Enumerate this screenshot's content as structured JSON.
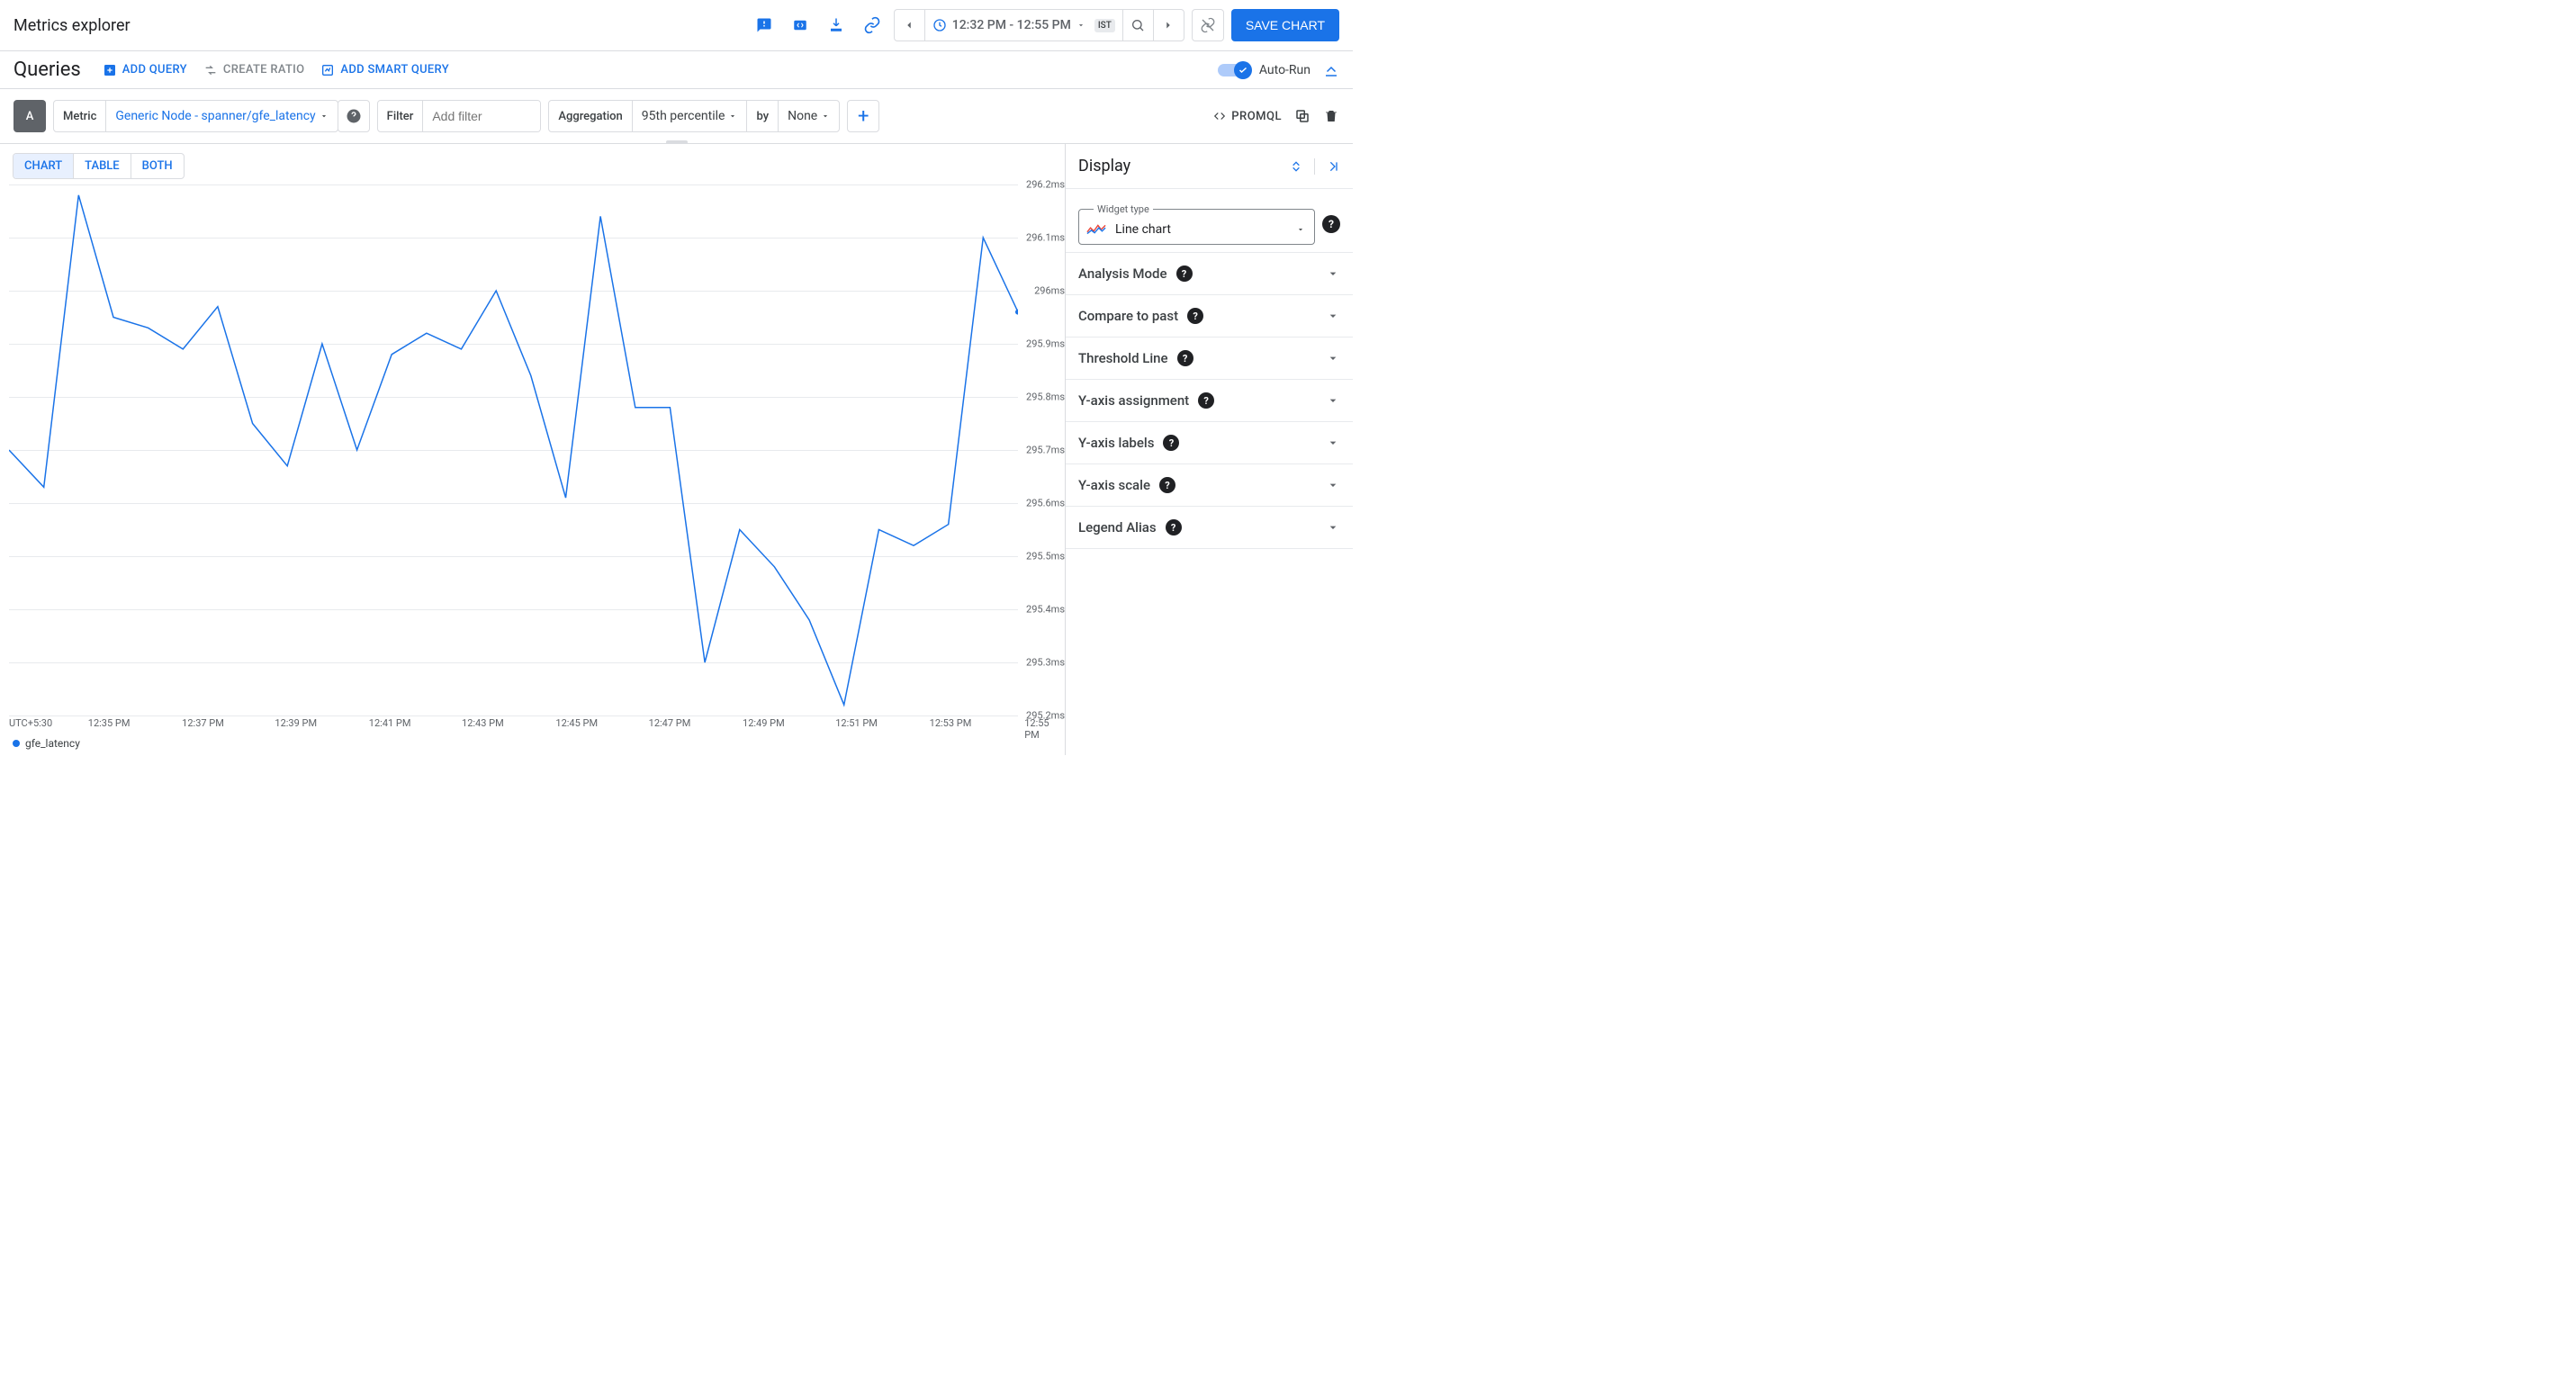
{
  "header": {
    "title": "Metrics explorer",
    "time_range": "12:32 PM - 12:55 PM",
    "tz_badge": "IST",
    "save_button": "SAVE CHART"
  },
  "queries_bar": {
    "title": "Queries",
    "add_query": "ADD QUERY",
    "create_ratio": "CREATE RATIO",
    "add_smart": "ADD SMART QUERY",
    "autorun": "Auto-Run"
  },
  "builder": {
    "chip": "A",
    "metric_label": "Metric",
    "metric_value": "Generic Node - spanner/gfe_latency",
    "filter_label": "Filter",
    "filter_placeholder": "Add filter",
    "agg_label": "Aggregation",
    "agg_value": "95th percentile",
    "by_label": "by",
    "by_value": "None",
    "promql": "PROMQL"
  },
  "tabs": {
    "chart": "CHART",
    "table": "TABLE",
    "both": "BOTH"
  },
  "chart": {
    "type": "line",
    "line_color": "#1a73e8",
    "grid_color": "#e8eaed",
    "bg": "#ffffff",
    "axis_text_color": "#5f6368",
    "y_min": 295.2,
    "y_max": 296.2,
    "y_step": 0.1,
    "y_ticks": [
      "296.2ms",
      "296.1ms",
      "296ms",
      "295.9ms",
      "295.8ms",
      "295.7ms",
      "295.6ms",
      "295.5ms",
      "295.4ms",
      "295.3ms",
      "295.2ms"
    ],
    "x_ticks": [
      "UTC+5:30",
      "12:35 PM",
      "12:37 PM",
      "12:39 PM",
      "12:41 PM",
      "12:43 PM",
      "12:45 PM",
      "12:47 PM",
      "12:49 PM",
      "12:51 PM",
      "12:53 PM",
      "12:55 PM"
    ],
    "x_tick_positions_pct": [
      0,
      9.7,
      18.6,
      27.4,
      36.3,
      45.1,
      54.0,
      62.8,
      71.7,
      80.5,
      89.4,
      98.4
    ],
    "values": [
      295.7,
      295.63,
      296.18,
      295.95,
      295.93,
      295.89,
      295.97,
      295.75,
      295.67,
      295.9,
      295.7,
      295.88,
      295.92,
      295.89,
      296.0,
      295.84,
      295.61,
      296.14,
      295.78,
      295.78,
      295.3,
      295.55,
      295.48,
      295.38,
      295.22,
      295.55,
      295.52,
      295.56,
      296.1,
      295.96
    ],
    "end_dot_value": 295.96,
    "legend_label": "gfe_latency"
  },
  "display": {
    "title": "Display",
    "widget_label": "Widget type",
    "widget_value": "Line chart",
    "sections": [
      "Analysis Mode",
      "Compare to past",
      "Threshold Line",
      "Y-axis assignment",
      "Y-axis labels",
      "Y-axis scale",
      "Legend Alias"
    ]
  }
}
